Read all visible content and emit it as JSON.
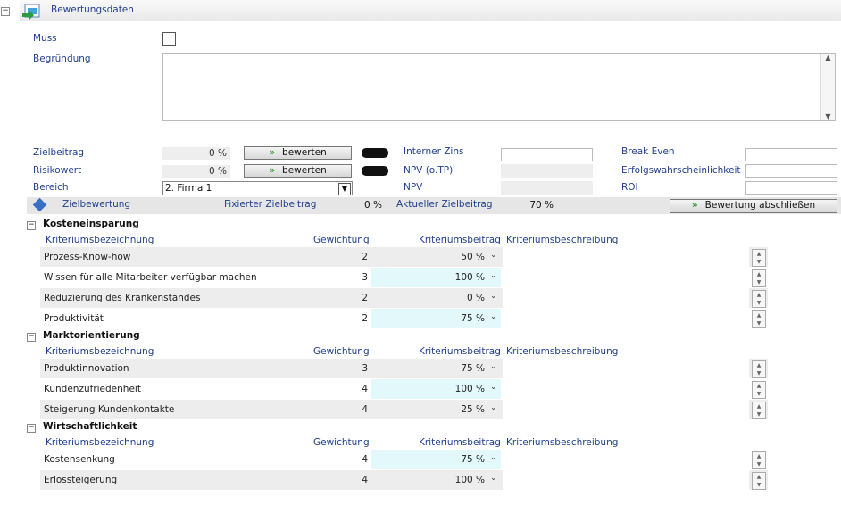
{
  "header": {
    "title": "Bewertungsdaten"
  },
  "form": {
    "muss": {
      "label": "Muss"
    },
    "begruendung": {
      "label": "Begründung"
    },
    "zielbeitrag": {
      "label": "Zielbeitrag",
      "value": "0 %",
      "button": "bewerten"
    },
    "risikowert": {
      "label": "Risikowert",
      "value": "0 %",
      "button": "bewerten"
    },
    "bereich": {
      "label": "Bereich",
      "value": "2. Firma 1"
    },
    "interner_zins": {
      "label": "Interner Zins"
    },
    "npv_otp": {
      "label": "NPV (o.TP)"
    },
    "npv": {
      "label": "NPV"
    },
    "break_even": {
      "label": "Break Even"
    },
    "erfolgswahrscheinlichkeit": {
      "label": "Erfolgswahrscheinlichkeit"
    },
    "roi": {
      "label": "ROI"
    }
  },
  "summary": {
    "label": "Zielbewertung",
    "fixed_label": "Fixierter Zielbeitrag",
    "fixed_value": "0 %",
    "current_label": "Aktueller Zielbeitrag",
    "current_value": "70 %",
    "button": "Bewertung abschließen"
  },
  "columns": [
    "Kriteriumsbezeichnung",
    "Gewichtung",
    "Kriteriumsbeitrag",
    "Kriteriumsbeschreibung"
  ],
  "groups": [
    {
      "title": "Kosteneinsparung",
      "rows": [
        [
          "Prozess-Know-how",
          2,
          "50 %"
        ],
        [
          "Wissen für alle Mitarbeiter verfügbar machen",
          3,
          "100 %"
        ],
        [
          "Reduzierung des Krankenstandes",
          2,
          "0 %"
        ],
        [
          "Produktivität",
          2,
          "75 %"
        ]
      ]
    },
    {
      "title": "Marktorientierung",
      "rows": [
        [
          "Produktinnovation",
          3,
          "75 %"
        ],
        [
          "Kundenzufriedenheit",
          4,
          "100 %"
        ],
        [
          "Steigerung Kundenkontakte",
          4,
          "25 %"
        ]
      ]
    },
    {
      "title": "Wirtschaftlichkeit",
      "rows": [
        [
          "Kostensenkung",
          4,
          "75 %"
        ],
        [
          "Erlössteigerung",
          4,
          "100 %"
        ]
      ]
    }
  ]
}
